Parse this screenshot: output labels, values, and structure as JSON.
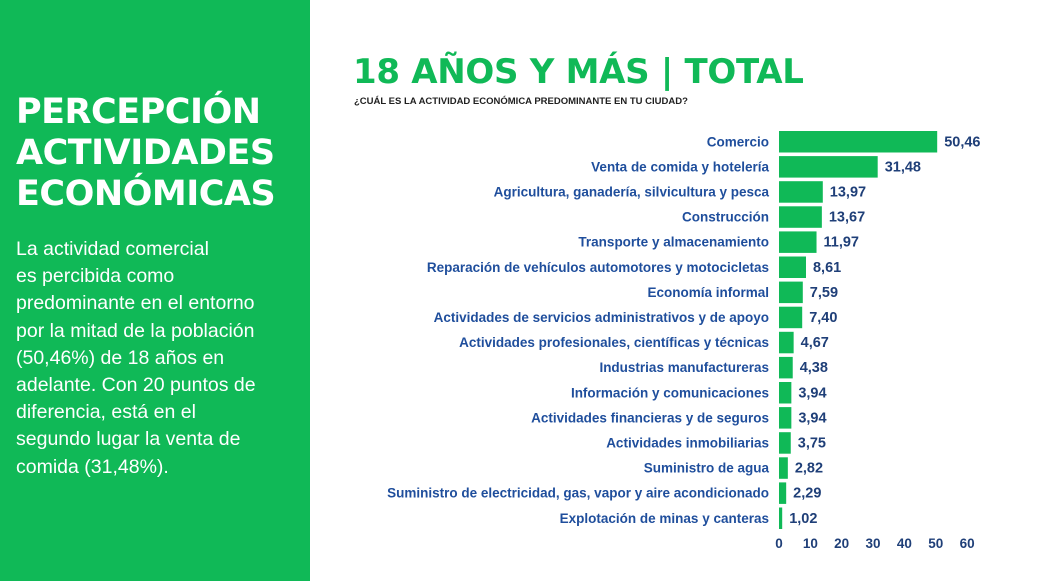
{
  "sidebar": {
    "title_lines": [
      "PERCEPCIÓN",
      "ACTIVIDADES",
      "ECONÓMICAS"
    ],
    "body_lines": [
      "La actividad comercial",
      "es percibida como",
      "predominante en el entorno",
      "por la mitad de la población",
      "(50,46%) de 18 años en",
      "adelante. Con 20 puntos de",
      "diferencia, está en el",
      "segundo lugar la venta de",
      "comida (31,48%)."
    ]
  },
  "chart_data": {
    "type": "bar",
    "orientation": "horizontal",
    "title": "18 AÑOS Y MÁS | TOTAL",
    "subtitle": "¿CUÁL ES LA ACTIVIDAD ECONÓMICA PREDOMINANTE EN TU CIUDAD?",
    "categories": [
      "Comercio",
      "Venta de comida y hotelería",
      "Agricultura, ganadería, silvicultura y pesca",
      "Construcción",
      "Transporte y almacenamiento",
      "Reparación de vehículos automotores y motocicletas",
      "Economía informal",
      "Actividades de servicios administrativos y de apoyo",
      "Actividades profesionales, científicas y técnicas",
      "Industrias manufactureras",
      "Información y comunicaciones",
      "Actividades financieras y de seguros",
      "Actividades inmobiliarias",
      "Suministro de agua",
      "Suministro de electricidad, gas, vapor y aire acondicionado",
      "Explotación de minas y canteras"
    ],
    "values": [
      50.46,
      31.48,
      13.97,
      13.67,
      11.97,
      8.61,
      7.59,
      7.4,
      4.67,
      4.38,
      3.94,
      3.94,
      3.75,
      2.82,
      2.29,
      1.02
    ],
    "value_labels": [
      "50,46",
      "31,48",
      "13,97",
      "13,67",
      "11,97",
      "8,61",
      "7,59",
      "7,40",
      "4,67",
      "4,38",
      "3,94",
      "3,94",
      "3,75",
      "2,82",
      "2,29",
      "1,02"
    ],
    "xticks": [
      0,
      10,
      20,
      30,
      40,
      50,
      60
    ],
    "xlim": [
      0,
      60
    ],
    "grid": false,
    "legend": "none",
    "colors": {
      "bar": "#10b957",
      "label": "#1f4e9c",
      "value": "#1f3f78",
      "title": "#10b957",
      "panel": "#10b957"
    }
  }
}
